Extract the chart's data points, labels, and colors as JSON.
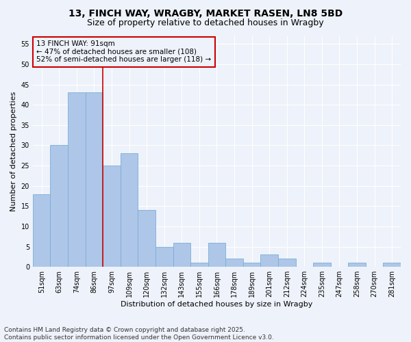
{
  "title_line1": "13, FINCH WAY, WRAGBY, MARKET RASEN, LN8 5BD",
  "title_line2": "Size of property relative to detached houses in Wragby",
  "xlabel": "Distribution of detached houses by size in Wragby",
  "ylabel": "Number of detached properties",
  "categories": [
    "51sqm",
    "63sqm",
    "74sqm",
    "86sqm",
    "97sqm",
    "109sqm",
    "120sqm",
    "132sqm",
    "143sqm",
    "155sqm",
    "166sqm",
    "178sqm",
    "189sqm",
    "201sqm",
    "212sqm",
    "224sqm",
    "235sqm",
    "247sqm",
    "258sqm",
    "270sqm",
    "281sqm"
  ],
  "values": [
    18,
    30,
    43,
    43,
    25,
    28,
    14,
    5,
    6,
    1,
    6,
    2,
    1,
    3,
    2,
    0,
    1,
    0,
    1,
    0,
    1
  ],
  "bar_color": "#aec6e8",
  "bar_edgecolor": "#7aafd4",
  "vline_x": 3.5,
  "vline_color": "#cc0000",
  "annotation_text": "13 FINCH WAY: 91sqm\n← 47% of detached houses are smaller (108)\n52% of semi-detached houses are larger (118) →",
  "annotation_box_edgecolor": "#cc0000",
  "ylim": [
    0,
    57
  ],
  "yticks": [
    0,
    5,
    10,
    15,
    20,
    25,
    30,
    35,
    40,
    45,
    50,
    55
  ],
  "footnote": "Contains HM Land Registry data © Crown copyright and database right 2025.\nContains public sector information licensed under the Open Government Licence v3.0.",
  "background_color": "#eef2fa",
  "grid_color": "#ffffff",
  "title_fontsize": 10,
  "subtitle_fontsize": 9,
  "axis_label_fontsize": 8,
  "tick_fontsize": 7,
  "annotation_fontsize": 7.5,
  "footnote_fontsize": 6.5,
  "ylabel_fontsize": 8
}
